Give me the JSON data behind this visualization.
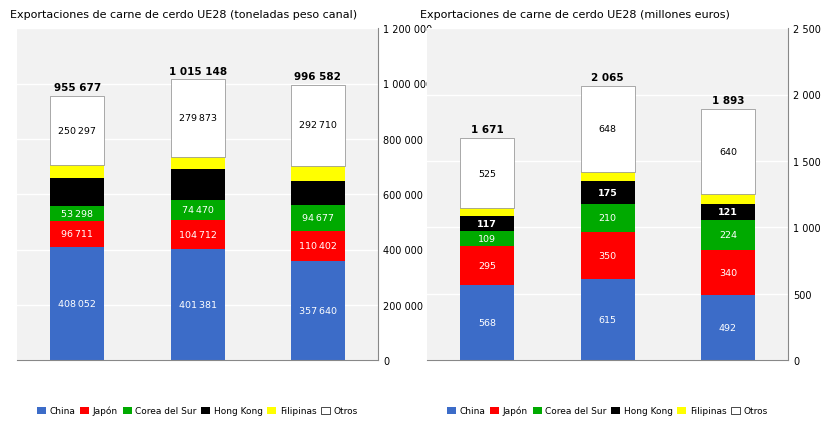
{
  "left_title": "Exportaciones de carne de cerdo UE28 (toneladas peso canal)",
  "right_title": "Exportaciones de carne de cerdo UE28 (millones euros)",
  "left_totals": [
    "955 677",
    "1 015 148",
    "996 582"
  ],
  "right_totals": [
    "1 671",
    "2 065",
    "1 893"
  ],
  "left_data": {
    "China": [
      408052,
      401381,
      357640
    ],
    "Japón": [
      96711,
      104712,
      110402
    ],
    "Corea del Sur": [
      53298,
      74470,
      94677
    ],
    "Hong Kong": [
      99000,
      111812,
      86700
    ],
    "Filipinas": [
      48319,
      42900,
      54453
    ],
    "Otros": [
      250297,
      279873,
      292710
    ]
  },
  "right_data": {
    "China": [
      568,
      615,
      492
    ],
    "Japón": [
      295,
      350,
      340
    ],
    "Corea del Sur": [
      109,
      210,
      224
    ],
    "Hong Kong": [
      117,
      175,
      121
    ],
    "Filipinas": [
      57,
      67,
      76
    ],
    "Otros": [
      525,
      648,
      640
    ]
  },
  "colors": {
    "China": "#3C6CC8",
    "Japón": "#FF0000",
    "Corea del Sur": "#00AA00",
    "Hong Kong": "#000000",
    "Filipinas": "#FFFF00",
    "Otros": "#FFFFFF"
  },
  "left_ylim": [
    0,
    1200000
  ],
  "right_ylim": [
    0,
    2500
  ],
  "left_yticks": [
    0,
    200000,
    400000,
    600000,
    800000,
    1000000,
    1200000
  ],
  "right_yticks": [
    0,
    500,
    1000,
    1500,
    2000,
    2500
  ],
  "left_ytick_labels": [
    "0",
    "200 000",
    "400 000",
    "600 000",
    "800 000",
    "1 000 000",
    "1 200 000"
  ],
  "right_ytick_labels": [
    "0",
    "500",
    "1 000",
    "1 500",
    "2 000",
    "2 500"
  ],
  "plot_bg": "#F2F2F2",
  "fig_bg": "#FFFFFF",
  "bar_width": 0.45,
  "legend_labels": [
    "China",
    "Japón",
    "Corea del Sur",
    "Hong Kong",
    "Filipinas",
    "Otros"
  ]
}
